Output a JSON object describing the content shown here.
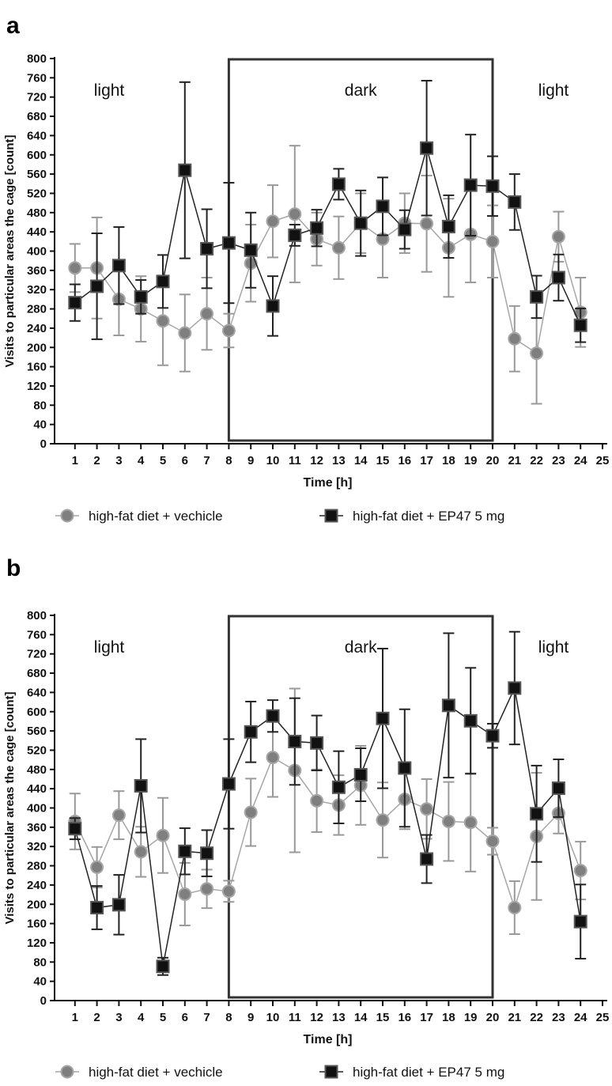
{
  "chart_data": [
    {
      "type": "line",
      "panel_label": "a",
      "xlabel": "Time [h]",
      "ylabel": "Visits to particular areas the cage [count]",
      "ylim": [
        0,
        800
      ],
      "y_ticks": [
        "0",
        "40",
        "80",
        "120",
        "160",
        "200",
        "240",
        "280",
        "320",
        "360",
        "400",
        "440",
        "480",
        "520",
        "560",
        "600",
        "640",
        "680",
        "720",
        "760",
        "800"
      ],
      "x_ticks": [
        "1",
        "2",
        "3",
        "4",
        "5",
        "6",
        "7",
        "8",
        "9",
        "10",
        "11",
        "12",
        "13",
        "14",
        "15",
        "16",
        "17",
        "18",
        "19",
        "20",
        "21",
        "22",
        "23",
        "24",
        "25"
      ],
      "regions": [
        {
          "label": "light",
          "from": 0,
          "to": 8
        },
        {
          "label": "dark",
          "from": 8,
          "to": 20
        },
        {
          "label": "light",
          "from": 20,
          "to": 25
        }
      ],
      "series": [
        {
          "name": "high-fat diet + vechicle",
          "color": "#808080",
          "marker": "circle",
          "x": [
            1,
            2,
            3,
            4,
            5,
            6,
            7,
            8,
            9,
            10,
            11,
            12,
            13,
            14,
            15,
            16,
            17,
            18,
            19,
            20,
            21,
            22,
            23,
            24
          ],
          "values": [
            365,
            365,
            300,
            280,
            255,
            230,
            270,
            235,
            375,
            462,
            477,
            425,
            407,
            458,
            425,
            458,
            457,
            407,
            435,
            420,
            218,
            188,
            430,
            273
          ],
          "err": [
            50,
            105,
            75,
            68,
            92,
            80,
            75,
            35,
            80,
            75,
            142,
            55,
            65,
            62,
            80,
            62,
            100,
            102,
            100,
            75,
            68,
            105,
            52,
            72
          ]
        },
        {
          "name": "high-fat diet + EP47 5 mg",
          "color": "#111111",
          "marker": "square",
          "x": [
            1,
            2,
            3,
            4,
            5,
            6,
            7,
            8,
            9,
            10,
            11,
            12,
            13,
            14,
            15,
            16,
            17,
            18,
            19,
            20,
            21,
            22,
            23,
            24
          ],
          "values": [
            293,
            327,
            370,
            305,
            337,
            568,
            405,
            417,
            402,
            286,
            433,
            448,
            539,
            458,
            493,
            445,
            614,
            451,
            537,
            535,
            502,
            305,
            345,
            246
          ],
          "err": [
            38,
            110,
            80,
            35,
            55,
            183,
            82,
            125,
            78,
            62,
            22,
            38,
            32,
            68,
            60,
            40,
            140,
            65,
            105,
            62,
            58,
            44,
            48,
            35
          ]
        }
      ]
    },
    {
      "type": "line",
      "panel_label": "b",
      "xlabel": "Time [h]",
      "ylabel": "Visits to particular areas the cage [count]",
      "ylim": [
        0,
        800
      ],
      "y_ticks": [
        "0",
        "40",
        "80",
        "120",
        "160",
        "200",
        "240",
        "280",
        "320",
        "360",
        "400",
        "440",
        "480",
        "520",
        "560",
        "600",
        "640",
        "680",
        "720",
        "760",
        "800"
      ],
      "x_ticks": [
        "1",
        "2",
        "3",
        "4",
        "5",
        "6",
        "7",
        "8",
        "9",
        "10",
        "11",
        "12",
        "13",
        "14",
        "15",
        "16",
        "17",
        "18",
        "19",
        "20",
        "21",
        "22",
        "23",
        "24",
        "25"
      ],
      "regions": [
        {
          "label": "light",
          "from": 0,
          "to": 8
        },
        {
          "label": "dark",
          "from": 8,
          "to": 20
        },
        {
          "label": "light",
          "from": 20,
          "to": 25
        }
      ],
      "series": [
        {
          "name": "high-fat diet + vechicle",
          "color": "#808080",
          "marker": "circle",
          "x": [
            1,
            2,
            3,
            4,
            5,
            6,
            7,
            8,
            9,
            10,
            11,
            12,
            13,
            14,
            15,
            16,
            17,
            18,
            19,
            20,
            21,
            22,
            23,
            24
          ],
          "values": [
            372,
            277,
            385,
            309,
            343,
            221,
            232,
            227,
            391,
            505,
            478,
            415,
            406,
            447,
            375,
            418,
            398,
            372,
            370,
            331,
            193,
            341,
            389,
            270
          ],
          "err": [
            58,
            42,
            50,
            52,
            78,
            65,
            40,
            22,
            70,
            82,
            170,
            65,
            62,
            82,
            78,
            62,
            62,
            82,
            102,
            28,
            55,
            132,
            42,
            60
          ],
          "connect": "loop"
        },
        {
          "name": "high-fat diet + EP47 5 mg",
          "color": "#111111",
          "marker": "square",
          "x": [
            1,
            2,
            3,
            4,
            5,
            6,
            7,
            8,
            9,
            10,
            11,
            12,
            13,
            14,
            15,
            16,
            17,
            18,
            19,
            20,
            21,
            22,
            23,
            24
          ],
          "values": [
            357,
            193,
            199,
            446,
            71,
            310,
            306,
            450,
            558,
            591,
            538,
            535,
            443,
            469,
            586,
            483,
            294,
            613,
            581,
            550,
            649,
            388,
            441,
            164
          ],
          "err": [
            22,
            45,
            62,
            97,
            18,
            48,
            48,
            93,
            63,
            33,
            90,
            57,
            75,
            55,
            145,
            122,
            50,
            150,
            110,
            25,
            117,
            100,
            60,
            77
          ]
        }
      ]
    }
  ]
}
